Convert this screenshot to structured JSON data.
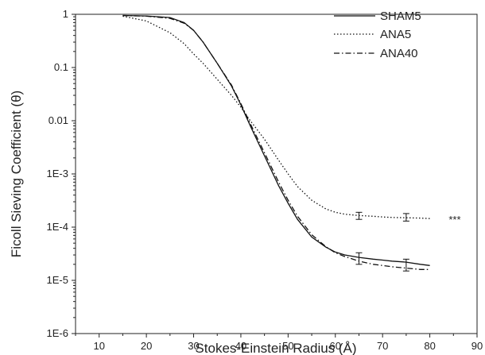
{
  "chart_data": {
    "type": "line",
    "xlabel": "Stokes-Einstein Radius (Å)",
    "ylabel": "Ficoll Sieving Coefficient (θ)",
    "xlim": [
      5,
      90
    ],
    "ylim": [
      1e-06,
      1
    ],
    "y_scale": "log",
    "x_ticks": [
      10,
      20,
      30,
      40,
      50,
      60,
      70,
      80,
      90
    ],
    "x_tick_labels": [
      "10",
      "20",
      "30",
      "40",
      "50",
      "60",
      "70",
      "80",
      "90"
    ],
    "y_ticks": [
      1,
      0.1,
      0.01,
      0.001,
      0.0001,
      1e-05,
      1e-06
    ],
    "y_tick_labels": [
      "1",
      "0.1",
      "0.01",
      "1E-3",
      "1E-4",
      "1E-5",
      "1E-6"
    ],
    "grid": false,
    "legend_position": "top-right",
    "annotation": {
      "text": "***",
      "x": 84,
      "y": 0.000145
    },
    "series": [
      {
        "name": "SHAM5",
        "style": "solid",
        "x": [
          15,
          20,
          25,
          28,
          30,
          32,
          35,
          38,
          40,
          42,
          45,
          48,
          50,
          52,
          55,
          58,
          60,
          62,
          65,
          68,
          70,
          72,
          75,
          78,
          80
        ],
        "y": [
          0.95,
          0.93,
          0.87,
          0.7,
          0.5,
          0.3,
          0.12,
          0.045,
          0.02,
          0.008,
          0.0022,
          0.0006,
          0.00028,
          0.00014,
          6.5e-05,
          4.2e-05,
          3.4e-05,
          3e-05,
          2.7e-05,
          2.5e-05,
          2.4e-05,
          2.3e-05,
          2.2e-05,
          2e-05,
          1.9e-05
        ],
        "error_bars": [
          {
            "x": 65,
            "y": 2.6e-05,
            "low": 2e-05,
            "high": 3.3e-05
          },
          {
            "x": 75,
            "y": 2.1e-05,
            "low": 1.5e-05,
            "high": 2.5e-05
          }
        ]
      },
      {
        "name": "ANA5",
        "style": "dotted",
        "x": [
          15,
          20,
          25,
          28,
          30,
          32,
          35,
          38,
          40,
          42,
          45,
          48,
          50,
          52,
          55,
          58,
          60,
          62,
          65,
          68,
          70,
          72,
          75,
          78,
          80
        ],
        "y": [
          0.92,
          0.75,
          0.45,
          0.28,
          0.18,
          0.12,
          0.06,
          0.03,
          0.018,
          0.01,
          0.0045,
          0.0018,
          0.001,
          0.00058,
          0.00032,
          0.00022,
          0.00019,
          0.000175,
          0.000165,
          0.00016,
          0.000155,
          0.000152,
          0.00015,
          0.000148,
          0.000145
        ],
        "error_bars": [
          {
            "x": 65,
            "y": 0.00016,
            "low": 0.00014,
            "high": 0.00019
          },
          {
            "x": 75,
            "y": 0.00015,
            "low": 0.00013,
            "high": 0.00018
          }
        ]
      },
      {
        "name": "ANA40",
        "style": "dashdot",
        "x": [
          15,
          20,
          25,
          28,
          30,
          32,
          35,
          38,
          40,
          42,
          45,
          48,
          50,
          52,
          55,
          58,
          60,
          62,
          65,
          68,
          70,
          72,
          75,
          78,
          80
        ],
        "y": [
          0.95,
          0.92,
          0.84,
          0.68,
          0.5,
          0.3,
          0.12,
          0.047,
          0.021,
          0.0088,
          0.0025,
          0.0007,
          0.00032,
          0.00016,
          7.2e-05,
          4.3e-05,
          3.3e-05,
          2.8e-05,
          2.3e-05,
          2e-05,
          1.9e-05,
          1.8e-05,
          1.7e-05,
          1.6e-05,
          1.6e-05
        ]
      }
    ]
  }
}
